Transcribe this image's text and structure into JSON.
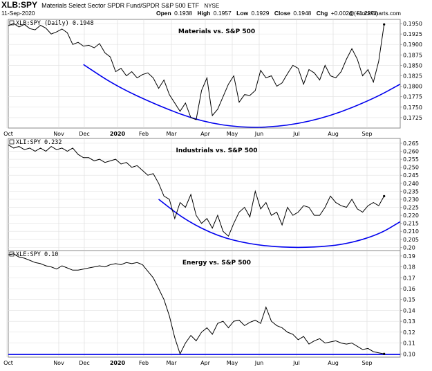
{
  "header": {
    "symbol": "XLB:SPY",
    "description": "Materials Select Sector SPDR Fund/SPDR S&P 500 ETF",
    "exchange": "NYSE",
    "date": "11-Sep-2020",
    "open_label": "Open",
    "open_value": "0.1938",
    "high_label": "High",
    "high_value": "0.1957",
    "low_label": "Low",
    "low_value": "0.1929",
    "close_label": "Close",
    "close_value": "0.1948",
    "chg_label": "Chg",
    "chg_value": "+0.0024 (+1.23%)",
    "watermark": "@ StockCharts.com"
  },
  "chart_data": [
    {
      "type": "line",
      "title": "Materials vs. S&P 500",
      "series_label": "XLB:SPY (Daily) 0.1948",
      "ylim": [
        0.17,
        0.196
      ],
      "yticks": [
        "0.1725",
        "0.1750",
        "0.1775",
        "0.1800",
        "0.1825",
        "0.1850",
        "0.1875",
        "0.1900",
        "0.1925",
        "0.1950"
      ],
      "xticks": [
        "Oct",
        "Nov",
        "Dec",
        "2020",
        "Feb",
        "Mar",
        "Apr",
        "May",
        "Jun",
        "Jul",
        "Aug",
        "Sep"
      ],
      "line_color": "#000000",
      "trend_color": "#0000ee",
      "x": [
        0,
        5,
        10,
        15,
        20,
        25,
        30,
        35,
        40,
        45,
        50,
        55,
        60,
        65,
        70,
        75,
        80,
        85,
        90,
        95,
        100,
        105,
        110,
        115,
        120,
        125,
        130,
        135,
        140,
        145,
        150,
        155,
        160,
        165,
        170,
        175,
        180,
        185,
        190,
        195,
        200,
        205,
        210,
        215,
        220,
        225,
        230,
        235,
        240,
        245,
        250,
        255,
        260,
        265,
        270,
        275,
        280,
        285,
        290,
        295,
        300,
        305,
        310,
        315,
        320,
        325,
        330,
        335,
        340,
        345,
        350
      ],
      "values": [
        0.1945,
        0.195,
        0.1942,
        0.1948,
        0.1938,
        0.1935,
        0.1946,
        0.1939,
        0.1925,
        0.193,
        0.1937,
        0.1928,
        0.19,
        0.1905,
        0.1896,
        0.1898,
        0.1892,
        0.1902,
        0.188,
        0.187,
        0.1835,
        0.1843,
        0.1825,
        0.1835,
        0.182,
        0.1828,
        0.1832,
        0.182,
        0.1795,
        0.1815,
        0.178,
        0.176,
        0.174,
        0.176,
        0.1725,
        0.172,
        0.179,
        0.182,
        0.173,
        0.1745,
        0.1775,
        0.1805,
        0.1825,
        0.1762,
        0.178,
        0.1778,
        0.179,
        0.1838,
        0.182,
        0.1825,
        0.18,
        0.1808,
        0.183,
        0.185,
        0.1843,
        0.1805,
        0.184,
        0.1832,
        0.1815,
        0.185,
        0.1825,
        0.182,
        0.1835,
        0.1865,
        0.189,
        0.1865,
        0.1825,
        0.184,
        0.181,
        0.186,
        0.1948
      ],
      "trend_x": [
        70,
        100,
        140,
        180,
        220,
        260,
        300,
        340,
        365
      ],
      "trend_values": [
        0.1852,
        0.1801,
        0.1753,
        0.1715,
        0.17,
        0.1705,
        0.1728,
        0.177,
        0.1805
      ]
    },
    {
      "type": "line",
      "title": "Industrials vs. S&P 500",
      "series_label": "XLI:SPY 0.232",
      "ylim": [
        0.198,
        0.268
      ],
      "yticks": [
        "0.20",
        "0.205",
        "0.210",
        "0.215",
        "0.220",
        "0.225",
        "0.230",
        "0.235",
        "0.240",
        "0.245",
        "0.250",
        "0.255",
        "0.260",
        "0.265"
      ],
      "xticks": [],
      "line_color": "#000000",
      "trend_color": "#0000ee",
      "x": [
        0,
        5,
        10,
        15,
        20,
        25,
        30,
        35,
        40,
        45,
        50,
        55,
        60,
        65,
        70,
        75,
        80,
        85,
        90,
        95,
        100,
        105,
        110,
        115,
        120,
        125,
        130,
        135,
        140,
        145,
        150,
        155,
        160,
        165,
        170,
        175,
        180,
        185,
        190,
        195,
        200,
        205,
        210,
        215,
        220,
        225,
        230,
        235,
        240,
        245,
        250,
        255,
        260,
        265,
        270,
        275,
        280,
        285,
        290,
        295,
        300,
        305,
        310,
        315,
        320,
        325,
        330,
        335,
        340,
        345,
        350
      ],
      "values": [
        0.264,
        0.262,
        0.263,
        0.261,
        0.262,
        0.26,
        0.262,
        0.26,
        0.263,
        0.261,
        0.262,
        0.26,
        0.262,
        0.258,
        0.256,
        0.256,
        0.254,
        0.255,
        0.253,
        0.254,
        0.255,
        0.252,
        0.253,
        0.25,
        0.251,
        0.248,
        0.245,
        0.246,
        0.24,
        0.232,
        0.23,
        0.218,
        0.228,
        0.225,
        0.233,
        0.22,
        0.215,
        0.218,
        0.212,
        0.22,
        0.21,
        0.207,
        0.215,
        0.222,
        0.225,
        0.219,
        0.235,
        0.224,
        0.228,
        0.22,
        0.222,
        0.214,
        0.225,
        0.22,
        0.222,
        0.226,
        0.225,
        0.22,
        0.22,
        0.225,
        0.232,
        0.228,
        0.226,
        0.225,
        0.23,
        0.224,
        0.222,
        0.226,
        0.228,
        0.226,
        0.232
      ],
      "trend_x": [
        140,
        165,
        195,
        225,
        255,
        285,
        315,
        345,
        365
      ],
      "trend_values": [
        0.23,
        0.217,
        0.207,
        0.202,
        0.2,
        0.2,
        0.202,
        0.208,
        0.216
      ]
    },
    {
      "type": "line",
      "title": "Energy vs. S&P 500",
      "series_label": "XLE:SPY 0.10",
      "ylim": [
        0.097,
        0.195
      ],
      "yticks": [
        "0.10",
        "0.11",
        "0.12",
        "0.13",
        "0.14",
        "0.15",
        "0.16",
        "0.17",
        "0.18",
        "0.19"
      ],
      "xticks": [
        "Oct",
        "Nov",
        "Dec",
        "2020",
        "Feb",
        "Mar",
        "Apr",
        "May",
        "Jun",
        "Jul",
        "Aug",
        "Sep"
      ],
      "line_color": "#000000",
      "trend_color": "#0000ee",
      "x": [
        0,
        5,
        10,
        15,
        20,
        25,
        30,
        35,
        40,
        45,
        50,
        55,
        60,
        65,
        70,
        75,
        80,
        85,
        90,
        95,
        100,
        105,
        110,
        115,
        120,
        125,
        130,
        135,
        140,
        145,
        150,
        155,
        160,
        165,
        170,
        175,
        180,
        185,
        190,
        195,
        200,
        205,
        210,
        215,
        220,
        225,
        230,
        235,
        240,
        245,
        250,
        255,
        260,
        265,
        270,
        275,
        280,
        285,
        290,
        295,
        300,
        305,
        310,
        315,
        320,
        325,
        330,
        335,
        340,
        345,
        350
      ],
      "values": [
        0.191,
        0.192,
        0.189,
        0.188,
        0.186,
        0.184,
        0.183,
        0.181,
        0.18,
        0.178,
        0.181,
        0.179,
        0.177,
        0.177,
        0.178,
        0.179,
        0.18,
        0.181,
        0.18,
        0.182,
        0.183,
        0.182,
        0.184,
        0.183,
        0.184,
        0.182,
        0.176,
        0.17,
        0.16,
        0.15,
        0.135,
        0.115,
        0.1,
        0.11,
        0.117,
        0.112,
        0.12,
        0.124,
        0.118,
        0.128,
        0.13,
        0.124,
        0.13,
        0.131,
        0.126,
        0.129,
        0.131,
        0.128,
        0.143,
        0.13,
        0.126,
        0.124,
        0.12,
        0.118,
        0.113,
        0.116,
        0.109,
        0.112,
        0.114,
        0.11,
        0.111,
        0.112,
        0.11,
        0.109,
        0.11,
        0.107,
        0.104,
        0.105,
        0.102,
        0.101,
        0.1
      ],
      "trend_x": [
        0,
        365
      ],
      "trend_values": [
        0.0995,
        0.0995
      ]
    }
  ]
}
